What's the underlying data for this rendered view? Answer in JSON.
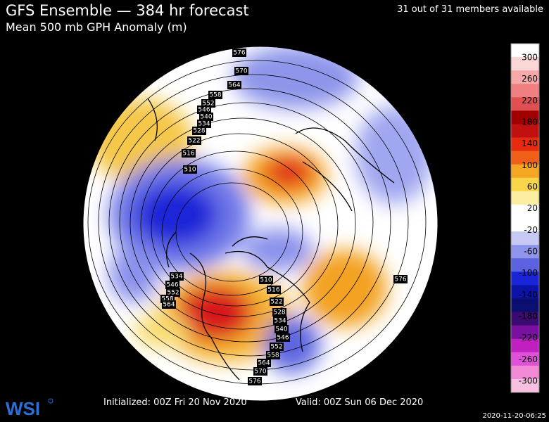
{
  "header": {
    "title": "GFS Ensemble — 384 hr forecast",
    "subtitle": "Mean 500 mb GPH Anomaly (m)",
    "members": "31 out of 31 members available"
  },
  "colorbar": {
    "labels": [
      "300",
      "260",
      "220",
      "180",
      "140",
      "100",
      "60",
      "20",
      "-20",
      "-60",
      "-100",
      "-140",
      "-180",
      "-220",
      "-260",
      "-300"
    ]
  },
  "contour_labels": [
    "576",
    "570",
    "564",
    "558",
    "552",
    "546",
    "540",
    "534",
    "528",
    "522",
    "516",
    "510",
    "534",
    "546",
    "552",
    "558",
    "564",
    "510",
    "516",
    "522",
    "528",
    "534",
    "540",
    "546",
    "552",
    "558",
    "564",
    "570",
    "576",
    "576"
  ],
  "footer": {
    "initialized": "Initialized: 00Z Fri 20 Nov 2020",
    "valid": "Valid: 00Z Sun 06 Dec 2020",
    "logo": "WSI",
    "timestamp": "2020-11-20-06:25"
  }
}
